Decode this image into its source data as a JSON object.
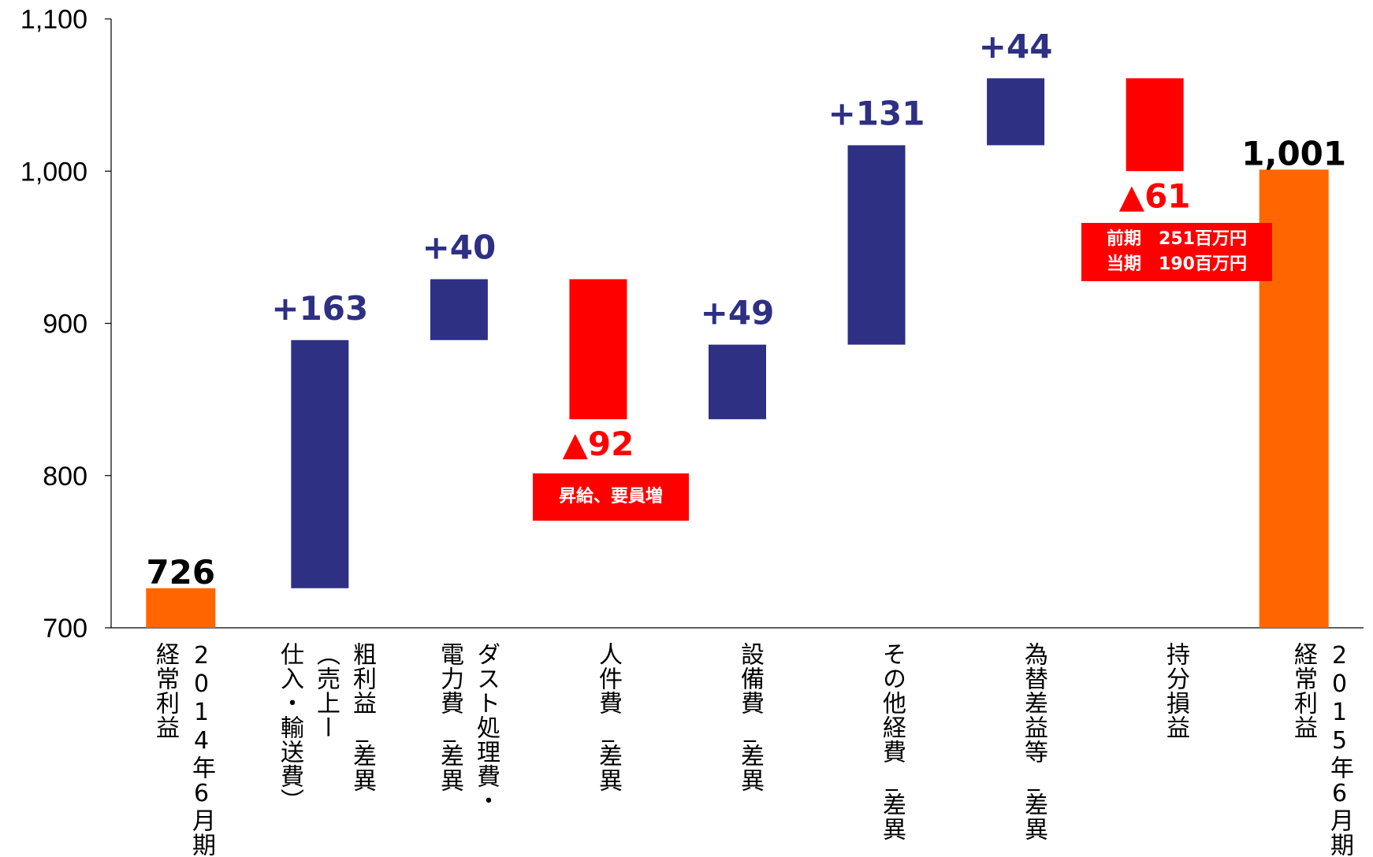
{
  "chart_data": {
    "type": "bar",
    "subtype": "waterfall",
    "ylim": [
      700,
      1100
    ],
    "yticks": [
      "700",
      "800",
      "900",
      "1,000",
      "1,100"
    ],
    "ytick_values": [
      700,
      800,
      900,
      1000,
      1100
    ],
    "grid": false,
    "colors": {
      "total": "#ff6600",
      "increase": "#2e3084",
      "decrease": "#ff0000"
    },
    "categories": [
      "2014年6月期\n経常利益",
      "粗利益_差異\n（売上ー\n仕入・輸送費）",
      "ダスト処理費・\n電力費_差異",
      "人件費_差異",
      "設備費_差異",
      "その他経費_差異",
      "為替差益等_差異",
      "持分損益",
      "2015年6月期\n経常利益"
    ],
    "bars": [
      {
        "kind": "total",
        "start": 0,
        "end": 726,
        "label": "726"
      },
      {
        "kind": "increase",
        "start": 726,
        "end": 889,
        "label": "+163"
      },
      {
        "kind": "increase",
        "start": 889,
        "end": 929,
        "label": "+40"
      },
      {
        "kind": "decrease",
        "start": 929,
        "end": 837,
        "label": "▲92"
      },
      {
        "kind": "increase",
        "start": 837,
        "end": 886,
        "label": "+49"
      },
      {
        "kind": "increase",
        "start": 886,
        "end": 1017,
        "label": "+131"
      },
      {
        "kind": "increase",
        "start": 1017,
        "end": 1061,
        "label": "+44"
      },
      {
        "kind": "decrease",
        "start": 1061,
        "end": 1000,
        "label": "▲61"
      },
      {
        "kind": "total",
        "start": 0,
        "end": 1001,
        "label": "1,001"
      }
    ],
    "annotations": {
      "jinkenhi": "昇給、要員増",
      "mochibun_prev": "前期　251百万円",
      "mochibun_curr": "当期　190百万円"
    }
  }
}
